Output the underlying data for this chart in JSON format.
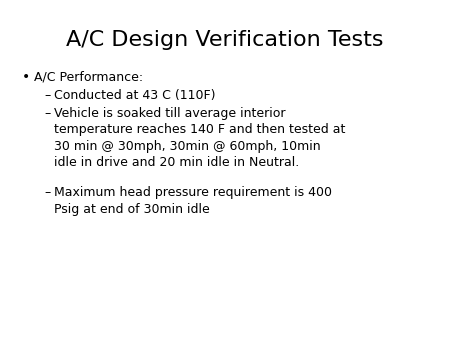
{
  "title": "A/C Design Verification Tests",
  "background_color": "#ffffff",
  "text_color": "#000000",
  "title_fontsize": 16,
  "body_fontsize": 9,
  "bullet": "•",
  "bullet_text": "A/C Performance:",
  "dash": "–",
  "sub_bullets": [
    "Conducted at 43 C (110F)",
    "Vehicle is soaked till average interior\ntemperature reaches 140 F and then tested at\n30 min @ 30mph, 30min @ 60mph, 10min\nidle in drive and 20 min idle in Neutral.",
    "Maximum head pressure requirement is 400\nPsig at end of 30min idle"
  ],
  "figsize": [
    4.5,
    3.38
  ],
  "dpi": 100
}
